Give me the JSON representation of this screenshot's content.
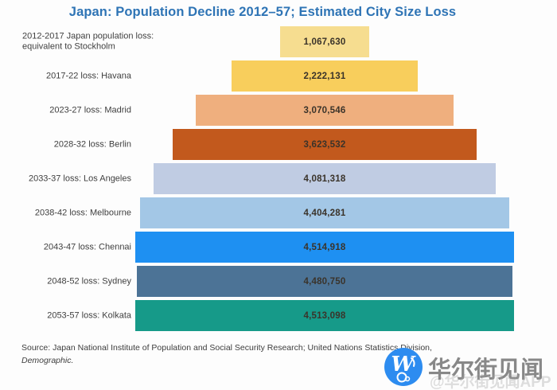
{
  "title": "Japan: Population Decline 2012–57; Estimated City Size Loss",
  "title_color": "#2E74B5",
  "source": {
    "line1": "Source: Japan National Institute of Population and Social Security Research; United Nations Statistics Division,",
    "line2": "Demographic."
  },
  "watermark": {
    "logo_letter": "W",
    "logo_color": "#2D8CF0",
    "brand_text": "华尔街见闻",
    "handle_text": "@华尔街见闻APP"
  },
  "chart_data": {
    "type": "bar",
    "orientation": "horizontal-centered-funnel",
    "title": "Japan: Population Decline 2012–57; Estimated City Size Loss",
    "xlabel": "",
    "ylabel": "",
    "grid": false,
    "legend": false,
    "value_range": [
      0,
      4514918
    ],
    "categories": [
      "2012-2017 Japan population loss: equivalent to Stockholm",
      "2017-22 loss: Havana",
      "2023-27 loss: Madrid",
      "2028-32 loss: Berlin",
      "2033-37 loss: Los Angeles",
      "2038-42 loss: Melbourne",
      "2043-47 loss: Chennai",
      "2048-52 loss: Sydney",
      "2053-57 loss: Kolkata"
    ],
    "rows": [
      {
        "label": "2012-2017 Japan population loss:\nequivalent to Stockholm",
        "value": 1067630,
        "display": "1,067,630",
        "color": "#F6DD90"
      },
      {
        "label": "2017-22 loss: Havana",
        "value": 2222131,
        "display": "2,222,131",
        "color": "#F8CE5C"
      },
      {
        "label": "2023-27 loss: Madrid",
        "value": 3070546,
        "display": "3,070,546",
        "color": "#EFAF7E"
      },
      {
        "label": "2028-32 loss: Berlin",
        "value": 3623532,
        "display": "3,623,532",
        "color": "#C2591D"
      },
      {
        "label": "2033-37 loss: Los Angeles",
        "value": 4081318,
        "display": "4,081,318",
        "color": "#C0CCE3"
      },
      {
        "label": "2038-42 loss: Melbourne",
        "value": 4404281,
        "display": "4,404,281",
        "color": "#A3C7E6"
      },
      {
        "label": "2043-47 loss: Chennai",
        "value": 4514918,
        "display": "4,514,918",
        "color": "#1E90F2"
      },
      {
        "label": "2048-52 loss: Sydney",
        "value": 4480750,
        "display": "4,480,750",
        "color": "#4C7396"
      },
      {
        "label": "2053-57 loss: Kolkata",
        "value": 4513098,
        "display": "4,513,098",
        "color": "#169A89"
      }
    ]
  }
}
